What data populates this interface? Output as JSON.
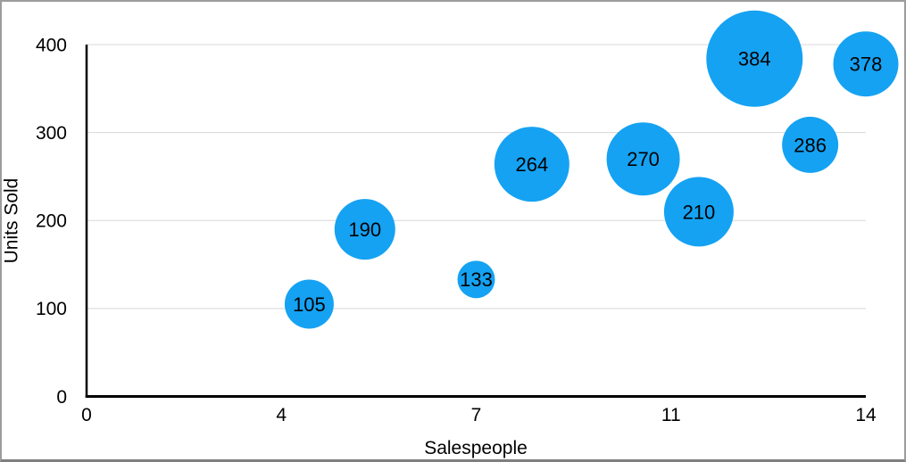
{
  "chart_data": {
    "type": "scatter",
    "subtype": "bubble",
    "title": "",
    "xlabel": "Salespeople",
    "ylabel": "Units Sold",
    "xlim": [
      0,
      14
    ],
    "ylim": [
      0,
      400
    ],
    "x_tick_labels": [
      "0",
      "4",
      "7",
      "11",
      "14"
    ],
    "y_tick_labels": [
      "0",
      "100",
      "200",
      "300",
      "400"
    ],
    "grid": "horizontal-gridlines-at-y-ticks",
    "legend": "none",
    "points": [
      {
        "x": 4,
        "y": 105,
        "label": "105",
        "bubble_radius_px": 27.5
      },
      {
        "x": 5,
        "y": 190,
        "label": "190",
        "bubble_radius_px": 34
      },
      {
        "x": 7,
        "y": 133,
        "label": "133",
        "bubble_radius_px": 21
      },
      {
        "x": 8,
        "y": 264,
        "label": "264",
        "bubble_radius_px": 42
      },
      {
        "x": 10,
        "y": 270,
        "label": "270",
        "bubble_radius_px": 41
      },
      {
        "x": 11,
        "y": 210,
        "label": "210",
        "bubble_radius_px": 39
      },
      {
        "x": 12,
        "y": 384,
        "label": "384",
        "bubble_radius_px": 54
      },
      {
        "x": 13,
        "y": 286,
        "label": "286",
        "bubble_radius_px": 31.5
      },
      {
        "x": 14,
        "y": 378,
        "label": "378",
        "bubble_radius_px": 36.5
      }
    ],
    "colors": {
      "bubble_fill": "#15A2F3",
      "bubble_label_text": "#000000",
      "gridline": "#d8d8d8",
      "axis_line": "#000000",
      "tick_text": "#000000",
      "frame_border": "#9c9c9c",
      "background": "#ffffff"
    }
  }
}
